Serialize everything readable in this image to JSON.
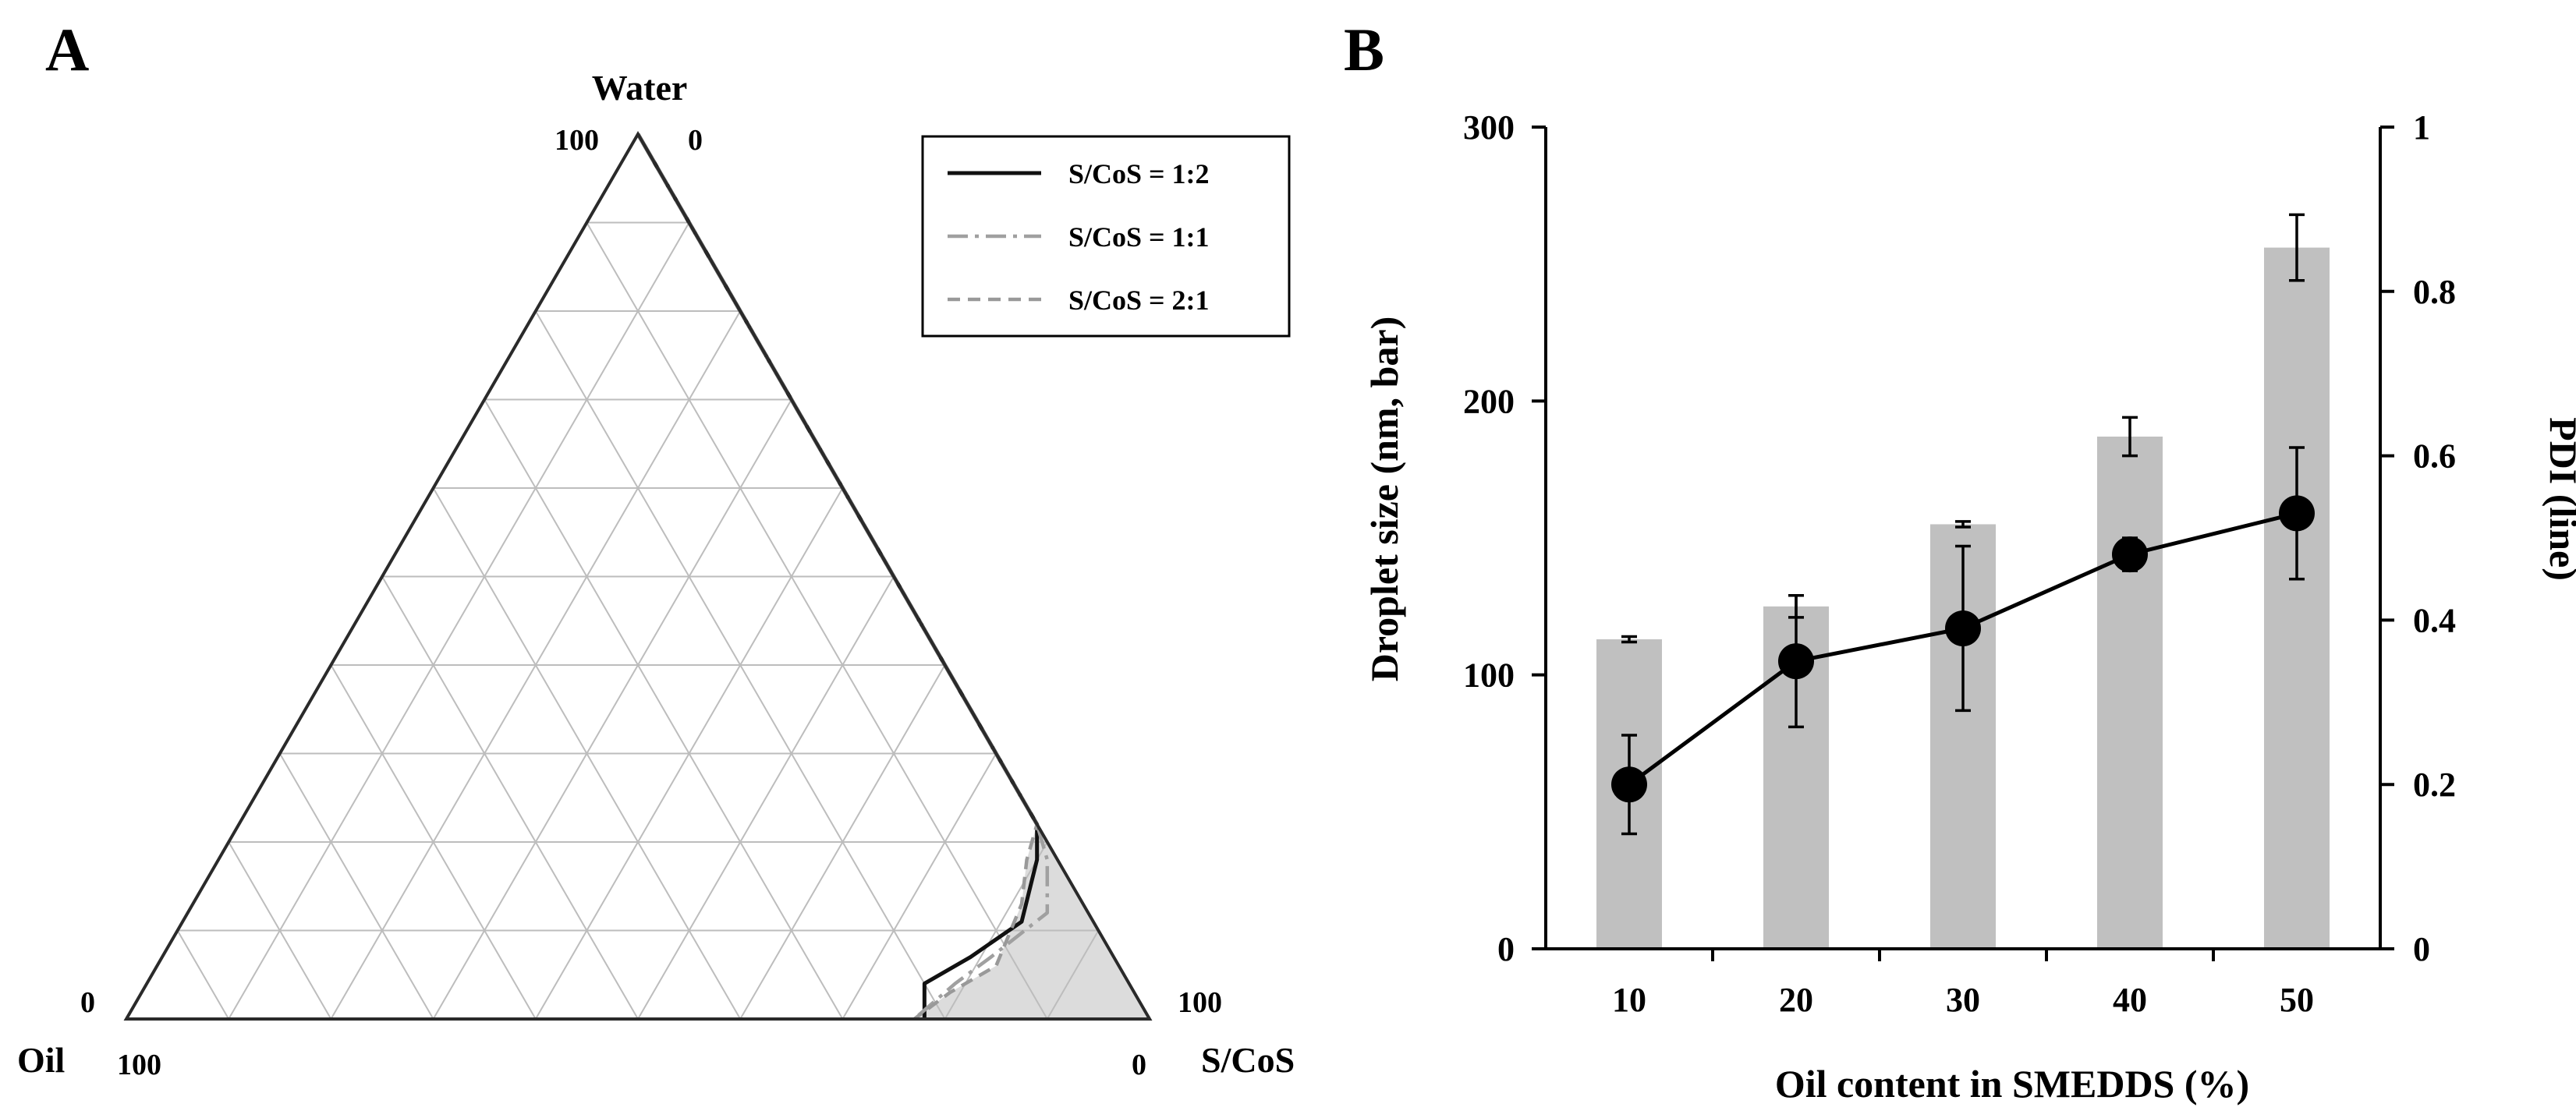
{
  "panels": {
    "a_label": "A",
    "b_label": "B"
  },
  "chart_data": [
    {
      "type": "ternary",
      "vertices": {
        "top": "Water",
        "left": "Oil",
        "right": "S/CoS"
      },
      "tick_labels": {
        "top_left": "100",
        "top_right": "0",
        "left_top": "0",
        "left_bottom": "100",
        "right_top": "100",
        "right_bottom": "0"
      },
      "grid_step_percent": 10,
      "shaded_region": "S/CoS = 2:1",
      "series": [
        {
          "name": "S/CoS = 1:2",
          "style": "solid",
          "color": "#111111",
          "points": [
            [
              100,
              0,
              0
            ],
            [
              88,
              0,
              12
            ],
            [
              78,
              0,
              22
            ],
            [
              60,
              0,
              40
            ],
            [
              43,
              0,
              57
            ],
            [
              22,
              0,
              78
            ],
            [
              18,
              2,
              80
            ],
            [
              11,
              7,
              82
            ],
            [
              7,
              14,
              79
            ],
            [
              4,
              20,
              76
            ],
            [
              0,
              22,
              78
            ]
          ]
        },
        {
          "name": "S/CoS = 1:1",
          "style": "dashdot",
          "color": "#a0a0a0",
          "points": [
            [
              100,
              0,
              0
            ],
            [
              88,
              0,
              12
            ],
            [
              78,
              0,
              22
            ],
            [
              60,
              0,
              40
            ],
            [
              50,
              0,
              50
            ],
            [
              40,
              0,
              60
            ],
            [
              33,
              0,
              67
            ],
            [
              22,
              0,
              78
            ],
            [
              18,
              1,
              81
            ],
            [
              12,
              4,
              84
            ],
            [
              7,
              12,
              81
            ],
            [
              4,
              17,
              79
            ],
            [
              0,
              23,
              77
            ]
          ]
        },
        {
          "name": "S/CoS = 2:1",
          "style": "dashed",
          "color": "#999999",
          "points": [
            [
              100,
              0,
              0
            ],
            [
              88,
              0,
              12
            ],
            [
              76,
              0,
              24
            ],
            [
              68,
              0,
              32
            ],
            [
              58,
              0,
              42
            ],
            [
              48,
              0,
              52
            ],
            [
              40,
              0,
              60
            ],
            [
              33,
              0,
              67
            ],
            [
              22,
              0,
              78
            ],
            [
              18,
              3,
              79
            ],
            [
              13,
              6,
              81
            ],
            [
              6,
              12,
              82
            ],
            [
              3,
              18,
              79
            ],
            [
              0,
              23,
              77
            ]
          ]
        }
      ]
    },
    {
      "type": "bar+line",
      "categories": [
        "10",
        "20",
        "30",
        "40",
        "50"
      ],
      "xlabel": "Oil content in SMEDDS (%)",
      "series": [
        {
          "name": "Droplet size",
          "kind": "bar",
          "axis": "left",
          "color": "#c0c0c0",
          "values": [
            113,
            125,
            155,
            187,
            256
          ],
          "errors": [
            1,
            4,
            1,
            7,
            12
          ]
        },
        {
          "name": "PDI",
          "kind": "line",
          "axis": "right",
          "color": "#000000",
          "values": [
            0.2,
            0.35,
            0.39,
            0.48,
            0.53
          ],
          "errors": [
            0.06,
            0.08,
            0.1,
            0.02,
            0.08
          ]
        }
      ],
      "left_axis": {
        "label": "Droplet size (nm, bar)",
        "ylim": [
          0,
          300
        ],
        "ticks": [
          "0",
          "100",
          "200",
          "300"
        ]
      },
      "right_axis": {
        "label": "PDI (line)",
        "ylim": [
          0,
          1
        ],
        "ticks": [
          "0",
          "0.2",
          "0.4",
          "0.6",
          "0.8",
          "1"
        ]
      }
    }
  ]
}
